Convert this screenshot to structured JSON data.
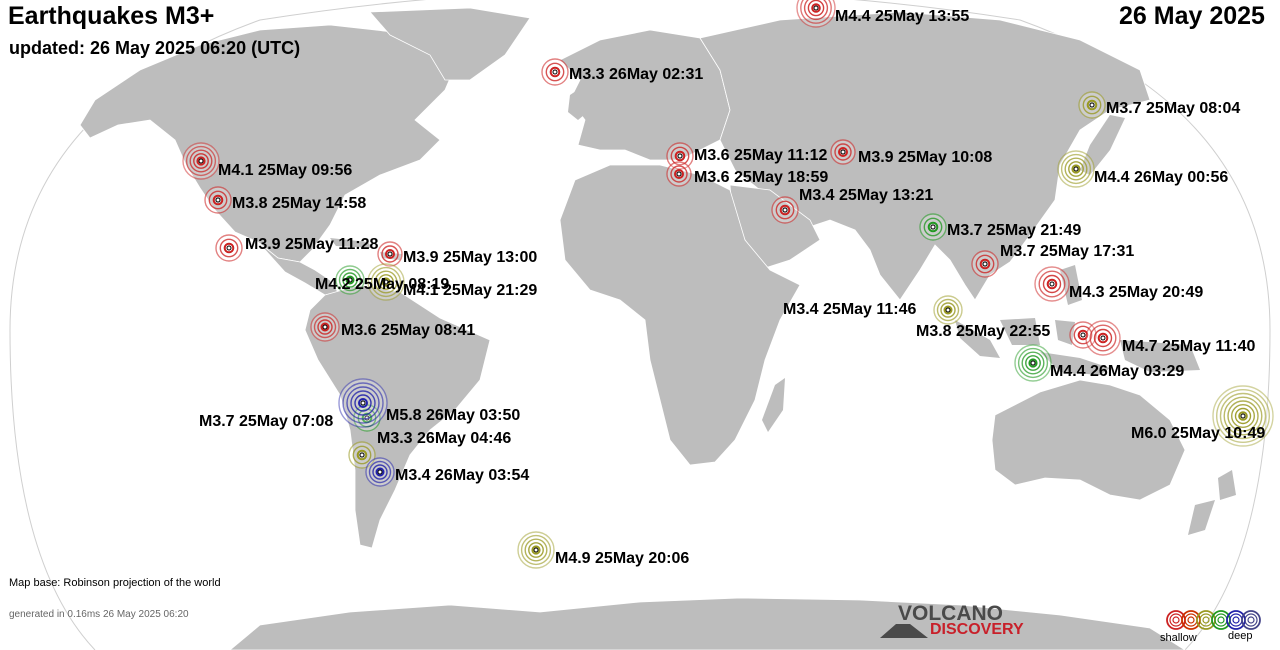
{
  "header": {
    "title": "Earthquakes M3+",
    "updated": "updated: 26 May 2025 06:20 (UTC)",
    "date": "26 May 2025"
  },
  "footer": {
    "map_base": "Map base: Robinson projection of the world",
    "generated": "generated in 0.16ms 26 May 2025 06:20"
  },
  "logo": {
    "top": "VOLCANO",
    "bottom": "DISCOVERY"
  },
  "legend": {
    "shallow": "shallow",
    "deep": "deep",
    "colors": [
      "#cc2222",
      "#cc3300",
      "#999922",
      "#229922",
      "#2222aa",
      "#444488"
    ]
  },
  "colors": {
    "land": "#bdbdbd",
    "ocean": "#ffffff",
    "shallow": "#cc2222",
    "intermediate": "#999922",
    "mid": "#229922",
    "deep": "#2222aa"
  },
  "quakes": [
    {
      "label": "M4.4 25May 13:55",
      "color": "#cc2222"
    },
    {
      "label": "M3.3 26May 02:31",
      "color": "#cc2222"
    },
    {
      "label": "M3.7 25May 08:04",
      "color": "#999922"
    },
    {
      "label": "M4.1 25May 09:56",
      "color": "#cc2222"
    },
    {
      "label": "M3.8 25May 14:58",
      "color": "#cc2222"
    },
    {
      "label": "M3.6 25May 11:12",
      "color": "#cc2222"
    },
    {
      "label": "M3.9 25May 10:08",
      "color": "#cc2222"
    },
    {
      "label": "M3.6 25May 18:59",
      "color": "#cc2222"
    },
    {
      "label": "M4.4 26May 00:56",
      "color": "#999922"
    },
    {
      "label": "M3.4 25May 13:21",
      "color": "#cc2222"
    },
    {
      "label": "M3.7 25May 21:49",
      "color": "#229922"
    },
    {
      "label": "M3.9 25May 11:28",
      "color": "#cc2222"
    },
    {
      "label": "M3.9 25May 13:00",
      "color": "#cc2222"
    },
    {
      "label": "M3.7 25May 17:31",
      "color": "#cc2222"
    },
    {
      "label": "M4.2 25May 08:19",
      "color": "#229922"
    },
    {
      "label": "M4.1 25May 21:29",
      "color": "#999922"
    },
    {
      "label": "M4.3 25May 20:49",
      "color": "#cc2222"
    },
    {
      "label": "M3.4 25May 11:46",
      "color": "#999922"
    },
    {
      "label": "M3.6 25May 08:41",
      "color": "#cc2222"
    },
    {
      "label": "M3.8 25May 22:55",
      "color": "#cc2222"
    },
    {
      "label": "M4.7 25May 11:40",
      "color": "#cc2222"
    },
    {
      "label": "M4.4 26May 03:29",
      "color": "#229922"
    },
    {
      "label": "M3.7 25May 07:08",
      "color": "#229922"
    },
    {
      "label": "M5.8 26May 03:50",
      "color": "#2222aa"
    },
    {
      "label": "M3.3 26May 04:46",
      "color": "#999922"
    },
    {
      "label": "M6.0 25May 10:49",
      "color": "#999922"
    },
    {
      "label": "M3.4 26May 03:54",
      "color": "#2222aa"
    },
    {
      "label": "M4.9 25May 20:06",
      "color": "#999922"
    }
  ]
}
